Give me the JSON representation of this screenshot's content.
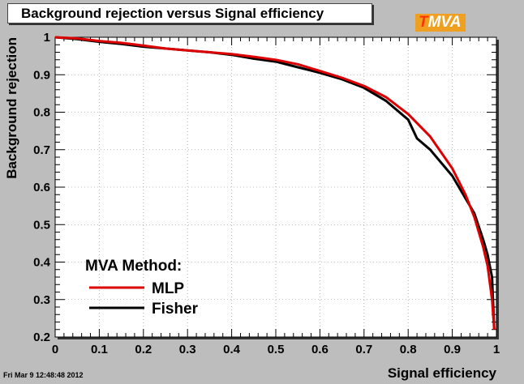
{
  "header": {
    "title": "Background rejection versus Signal efficiency",
    "logo_text": "MVA",
    "logo_t": "T"
  },
  "footer": {
    "timestamp": "Fri Mar  9 12:48:48 2012"
  },
  "colors": {
    "MLP": "#dd0000",
    "Fisher": "#000000",
    "frame_bg": "#ffffff",
    "page_bg": "#bdbdbd",
    "logo_bg": "#f0a020"
  },
  "chart_data": {
    "type": "line",
    "title": "Background rejection versus Signal efficiency",
    "xlabel": "Signal efficiency",
    "ylabel": "Background rejection",
    "xlim": [
      0,
      1
    ],
    "ylim": [
      0.2,
      1
    ],
    "xticks": [
      "0",
      "0.1",
      "0.2",
      "0.3",
      "0.4",
      "0.5",
      "0.6",
      "0.7",
      "0.8",
      "0.9",
      "1"
    ],
    "yticks": [
      "0.2",
      "0.3",
      "0.4",
      "0.5",
      "0.6",
      "0.7",
      "0.8",
      "0.9",
      "1"
    ],
    "legend": {
      "title": "MVA Method:",
      "position": "bottom-left"
    },
    "series": [
      {
        "name": "MLP",
        "color": "#dd0000",
        "x": [
          0,
          0.05,
          0.1,
          0.15,
          0.2,
          0.25,
          0.3,
          0.35,
          0.4,
          0.45,
          0.5,
          0.55,
          0.6,
          0.65,
          0.7,
          0.75,
          0.8,
          0.85,
          0.9,
          0.93,
          0.95,
          0.97,
          0.98,
          0.99,
          0.995
        ],
        "y": [
          1.0,
          0.997,
          0.99,
          0.985,
          0.978,
          0.97,
          0.965,
          0.96,
          0.955,
          0.948,
          0.94,
          0.928,
          0.91,
          0.892,
          0.87,
          0.84,
          0.795,
          0.735,
          0.65,
          0.58,
          0.52,
          0.44,
          0.39,
          0.3,
          0.22
        ]
      },
      {
        "name": "Fisher",
        "color": "#000000",
        "x": [
          0,
          0.05,
          0.1,
          0.15,
          0.2,
          0.25,
          0.3,
          0.35,
          0.4,
          0.45,
          0.5,
          0.55,
          0.6,
          0.65,
          0.7,
          0.75,
          0.8,
          0.82,
          0.85,
          0.9,
          0.93,
          0.95,
          0.97,
          0.98,
          0.99,
          0.995
        ],
        "y": [
          1.0,
          0.995,
          0.988,
          0.982,
          0.975,
          0.97,
          0.965,
          0.96,
          0.953,
          0.943,
          0.935,
          0.92,
          0.905,
          0.888,
          0.865,
          0.83,
          0.78,
          0.73,
          0.7,
          0.63,
          0.57,
          0.53,
          0.46,
          0.42,
          0.36,
          0.22
        ]
      }
    ]
  }
}
